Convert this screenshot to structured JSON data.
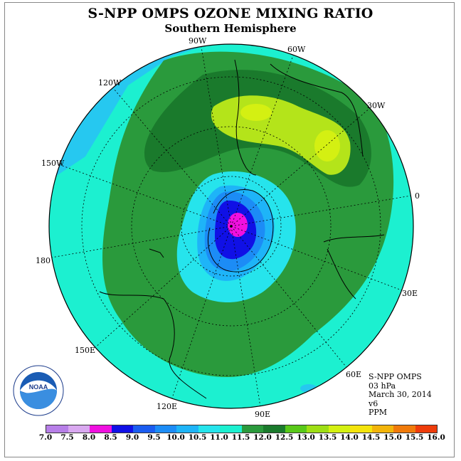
{
  "title": "S-NPP OMPS OZONE MIXING RATIO",
  "subtitle": "Southern Hemisphere",
  "meridians": [
    "90W",
    "60W",
    "120W",
    "30W",
    "150W",
    "0",
    "180",
    "30E",
    "150E",
    "60E",
    "120E",
    "90E"
  ],
  "info": {
    "instrument": "S-NPP OMPS",
    "level": "03 hPa",
    "date": "March 30, 2014",
    "version": "v6",
    "units": "PPM"
  },
  "logo": {
    "text": "NOAA",
    "ring_text": "NATIONAL OCEANIC AND ATMOSPHERIC ADMINISTRATION · U.S. DEPARTMENT OF COMMERCE"
  },
  "colorbar": {
    "ticks": [
      "7.0",
      "7.5",
      "8.0",
      "8.5",
      "9.0",
      "9.5",
      "10.0",
      "10.5",
      "11.0",
      "11.5",
      "12.0",
      "12.5",
      "13.0",
      "13.5",
      "14.0",
      "14.5",
      "15.0",
      "15.5",
      "16.0"
    ],
    "colors": [
      "#b77fe8",
      "#d9a8f0",
      "#f010e0",
      "#1010e6",
      "#1a5cf0",
      "#1c8cf6",
      "#1eb4f8",
      "#26e4ec",
      "#1cf0d0",
      "#2a9a3c",
      "#1a7a2c",
      "#58c818",
      "#9ede14",
      "#d4f012",
      "#f4e40c",
      "#f2b40a",
      "#f07a0a",
      "#ee3c0a",
      "#e00c10",
      "#8a5a3a"
    ]
  },
  "colors": {
    "cyan": "#1cf0d0",
    "light_blue": "#26c8f0",
    "green": "#2a9a3c",
    "dark_green": "#1a7a2c",
    "yellow_green": "#b4e41a",
    "blue": "#1a5cf0",
    "deep_blue": "#1010e6",
    "magenta": "#f010e0"
  }
}
